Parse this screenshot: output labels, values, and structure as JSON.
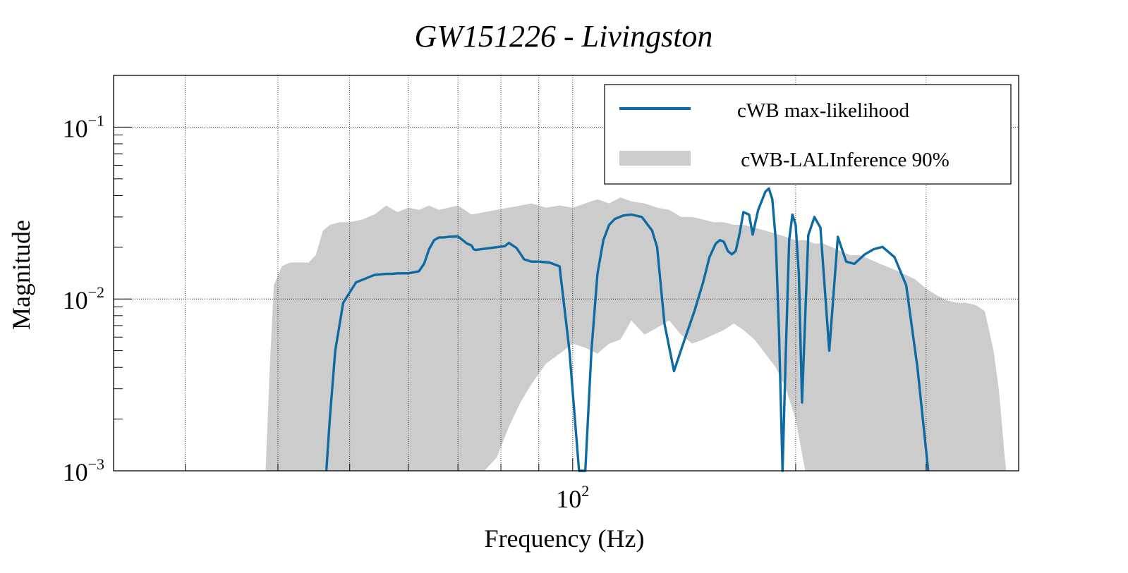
{
  "chart_data": {
    "type": "line",
    "title": "GW151226 - Livingston",
    "xlabel": "Frequency (Hz)",
    "ylabel": "Magnitude",
    "xscale": "log",
    "yscale": "log",
    "xlim": [
      24,
      400
    ],
    "ylim": [
      0.001,
      0.2
    ],
    "grid": true,
    "legend_position": "top-right",
    "x_tick_labels": [
      {
        "value": 100,
        "base": "10",
        "exp": "2"
      }
    ],
    "y_tick_labels": [
      {
        "value": 0.1,
        "base": "10",
        "exp": "−1"
      },
      {
        "value": 0.01,
        "base": "10",
        "exp": "−2"
      },
      {
        "value": 0.001,
        "base": "10",
        "exp": "−3"
      }
    ],
    "series": [
      {
        "name": "cWB max-likelihood",
        "kind": "line",
        "color": "#0e6aa2",
        "x": [
          46.5,
          47.0,
          47.8,
          49.0,
          51.0,
          54.0,
          56.0,
          57.0,
          58.0,
          60.0,
          62.0,
          63.0,
          64.0,
          65.0,
          66.0,
          67.0,
          68.0,
          70.0,
          72.0,
          73.0,
          73.5,
          74.0,
          81.0,
          82.0,
          84.0,
          86.0,
          88.0,
          90.0,
          93.0,
          96.0,
          99.0,
          102.0,
          104.0,
          106.0,
          108.0,
          110.0,
          112.0,
          114.0,
          117.0,
          120.0,
          124.0,
          128.0,
          130.0,
          133.0,
          137.0,
          141.0,
          146.0,
          150.0,
          153.0,
          156.0,
          158.0,
          160.0,
          162.0,
          164.0,
          166.0,
          168.0,
          170.0,
          173.0,
          175.0,
          178.0,
          182.0,
          184.0,
          186.0,
          188.0,
          190.0,
          192.0,
          194.0,
          196.0,
          198.0,
          200.0,
          202.0,
          204.0,
          208.0,
          212.0,
          216.0,
          222.0,
          228.0,
          234.0,
          240.0,
          248.0,
          255.0,
          262.0,
          272.0,
          282.0,
          292.0,
          302.0
        ],
        "y": [
          0.001,
          0.002,
          0.005,
          0.0095,
          0.0125,
          0.0138,
          0.014,
          0.014,
          0.0141,
          0.0141,
          0.0145,
          0.016,
          0.0195,
          0.022,
          0.0228,
          0.0228,
          0.023,
          0.0231,
          0.021,
          0.0205,
          0.0195,
          0.0193,
          0.0203,
          0.0212,
          0.0198,
          0.017,
          0.0165,
          0.0165,
          0.0163,
          0.0155,
          0.005,
          0.001,
          0.001,
          0.005,
          0.014,
          0.022,
          0.027,
          0.0292,
          0.0306,
          0.031,
          0.03,
          0.025,
          0.02,
          0.0072,
          0.0038,
          0.0055,
          0.0085,
          0.0125,
          0.0175,
          0.021,
          0.022,
          0.0215,
          0.019,
          0.0182,
          0.019,
          0.024,
          0.032,
          0.031,
          0.0237,
          0.033,
          0.042,
          0.044,
          0.038,
          0.022,
          0.006,
          0.001,
          0.005,
          0.022,
          0.031,
          0.027,
          0.014,
          0.0025,
          0.0235,
          0.03,
          0.026,
          0.005,
          0.023,
          0.0165,
          0.016,
          0.0182,
          0.0195,
          0.0201,
          0.0175,
          0.012,
          0.004,
          0.001
        ]
      },
      {
        "name": "cWB-LALInference 90%",
        "kind": "band",
        "color": "#cccccc",
        "x": [
          38.5,
          39.0,
          39.5,
          40.5,
          41.5,
          42.5,
          44.0,
          45.0,
          46.0,
          47.0,
          48.5,
          50.0,
          52.0,
          54.0,
          56.0,
          58.0,
          60.0,
          62.0,
          64.0,
          66.0,
          68.0,
          70.0,
          73.0,
          76.0,
          79.0,
          82.0,
          85.0,
          88.0,
          92.0,
          96.0,
          100.0,
          104.0,
          108.0,
          112.0,
          116.0,
          120.0,
          125.0,
          130.0,
          135.0,
          140.0,
          145.0,
          150.0,
          155.0,
          160.0,
          165.0,
          170.0,
          176.0,
          182.0,
          188.0,
          194.0,
          200.0,
          206.0,
          212.0,
          218.0,
          224.0,
          230.0,
          237.0,
          244.0,
          252.0,
          260.0,
          270.0,
          280.0,
          290.0,
          300.0,
          310.0,
          320.0,
          330.0,
          340.0,
          350.0,
          360.0,
          370.0,
          376.0,
          380.0,
          383.0,
          385.0
        ],
        "upper": [
          0.001,
          0.004,
          0.012,
          0.0155,
          0.0163,
          0.0163,
          0.0163,
          0.018,
          0.025,
          0.027,
          0.028,
          0.028,
          0.029,
          0.031,
          0.035,
          0.032,
          0.034,
          0.033,
          0.035,
          0.033,
          0.034,
          0.035,
          0.031,
          0.032,
          0.033,
          0.034,
          0.035,
          0.036,
          0.034,
          0.035,
          0.034,
          0.036,
          0.038,
          0.036,
          0.039,
          0.037,
          0.036,
          0.034,
          0.033,
          0.03,
          0.03,
          0.029,
          0.028,
          0.028,
          0.027,
          0.027,
          0.026,
          0.025,
          0.024,
          0.023,
          0.022,
          0.022,
          0.021,
          0.021,
          0.02,
          0.019,
          0.018,
          0.018,
          0.017,
          0.016,
          0.015,
          0.014,
          0.013,
          0.0115,
          0.0105,
          0.0098,
          0.0095,
          0.0095,
          0.0092,
          0.0085,
          0.005,
          0.003,
          0.0018,
          0.0012,
          0.001
        ],
        "lower": [
          0.001,
          0.001,
          0.001,
          0.001,
          0.001,
          0.001,
          0.001,
          0.001,
          0.001,
          0.001,
          0.001,
          0.001,
          0.001,
          0.001,
          0.001,
          0.001,
          0.001,
          0.001,
          0.001,
          0.001,
          0.001,
          0.001,
          0.001,
          0.001,
          0.0012,
          0.0018,
          0.0025,
          0.0032,
          0.0042,
          0.0048,
          0.0055,
          0.0052,
          0.0048,
          0.0055,
          0.0058,
          0.0075,
          0.0062,
          0.0068,
          0.0075,
          0.0062,
          0.0055,
          0.0058,
          0.0062,
          0.0066,
          0.0072,
          0.0066,
          0.0058,
          0.0048,
          0.004,
          0.003,
          0.002,
          0.001,
          0.001,
          0.001,
          0.001,
          0.001,
          0.001,
          0.001,
          0.001,
          0.001,
          0.001,
          0.001,
          0.001,
          0.001,
          0.001,
          0.001,
          0.001,
          0.001,
          0.001,
          0.001,
          0.001,
          0.001,
          0.001,
          0.001,
          0.001
        ]
      }
    ]
  }
}
